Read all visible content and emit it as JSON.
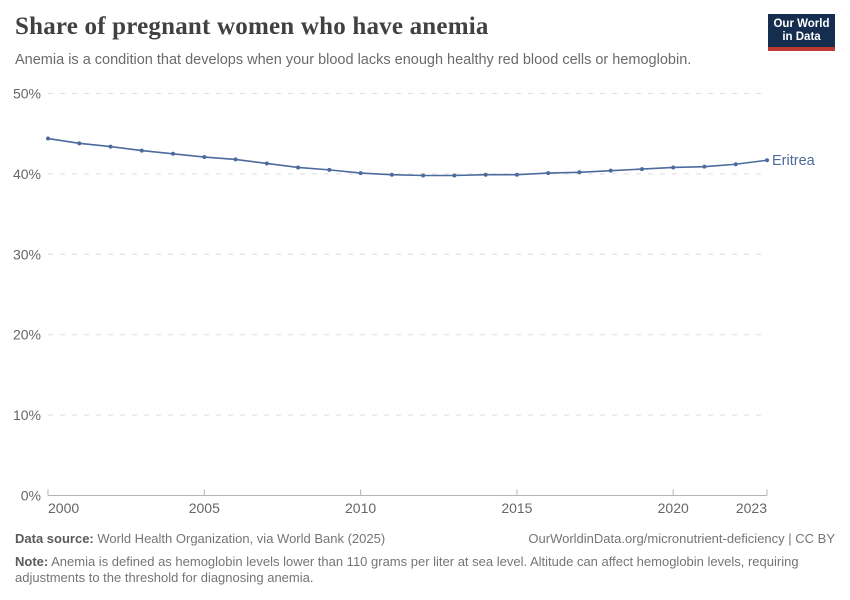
{
  "header": {
    "title": "Share of pregnant women who have anemia",
    "subtitle": "Anemia is a condition that develops when your blood lacks enough healthy red blood cells or hemoglobin.",
    "logo": {
      "line1": "Our World",
      "line2": "in Data",
      "bg_color": "#152D4F",
      "accent_color": "#BC3A33"
    }
  },
  "chart_data": {
    "type": "line",
    "title": "Share of pregnant women who have anemia",
    "xlabel": "",
    "ylabel": "",
    "xlim": [
      2000,
      2023
    ],
    "ylim": [
      0,
      50
    ],
    "x_ticks": [
      2000,
      2005,
      2010,
      2015,
      2020,
      2023
    ],
    "y_ticks": [
      0,
      10,
      20,
      30,
      40,
      50
    ],
    "y_tick_suffix": "%",
    "grid": "horizontal-dashed",
    "legend_position": "end-of-line-label",
    "series": [
      {
        "name": "Eritrea",
        "color": "#4C6A9C",
        "x": [
          2000,
          2001,
          2002,
          2003,
          2004,
          2005,
          2006,
          2007,
          2008,
          2009,
          2010,
          2011,
          2012,
          2013,
          2014,
          2015,
          2016,
          2017,
          2018,
          2019,
          2020,
          2021,
          2022,
          2023
        ],
        "values": [
          44.4,
          43.8,
          43.4,
          42.9,
          42.5,
          42.1,
          41.8,
          41.3,
          40.8,
          40.5,
          40.1,
          39.9,
          39.8,
          39.8,
          39.9,
          39.9,
          40.1,
          40.2,
          40.4,
          40.6,
          40.8,
          40.9,
          41.2,
          41.7
        ]
      }
    ]
  },
  "footer": {
    "datasource_label": "Data source:",
    "datasource_text": " World Health Organization, via World Bank (2025)",
    "link_text": "OurWorldinData.org/micronutrient-deficiency",
    "license_text": " | CC BY",
    "note_label": "Note:",
    "note_text": " Anemia is defined as hemoglobin levels lower than 110 grams per liter at sea level. Altitude can affect hemoglobin levels, requiring adjustments to the threshold for diagnosing anemia."
  }
}
